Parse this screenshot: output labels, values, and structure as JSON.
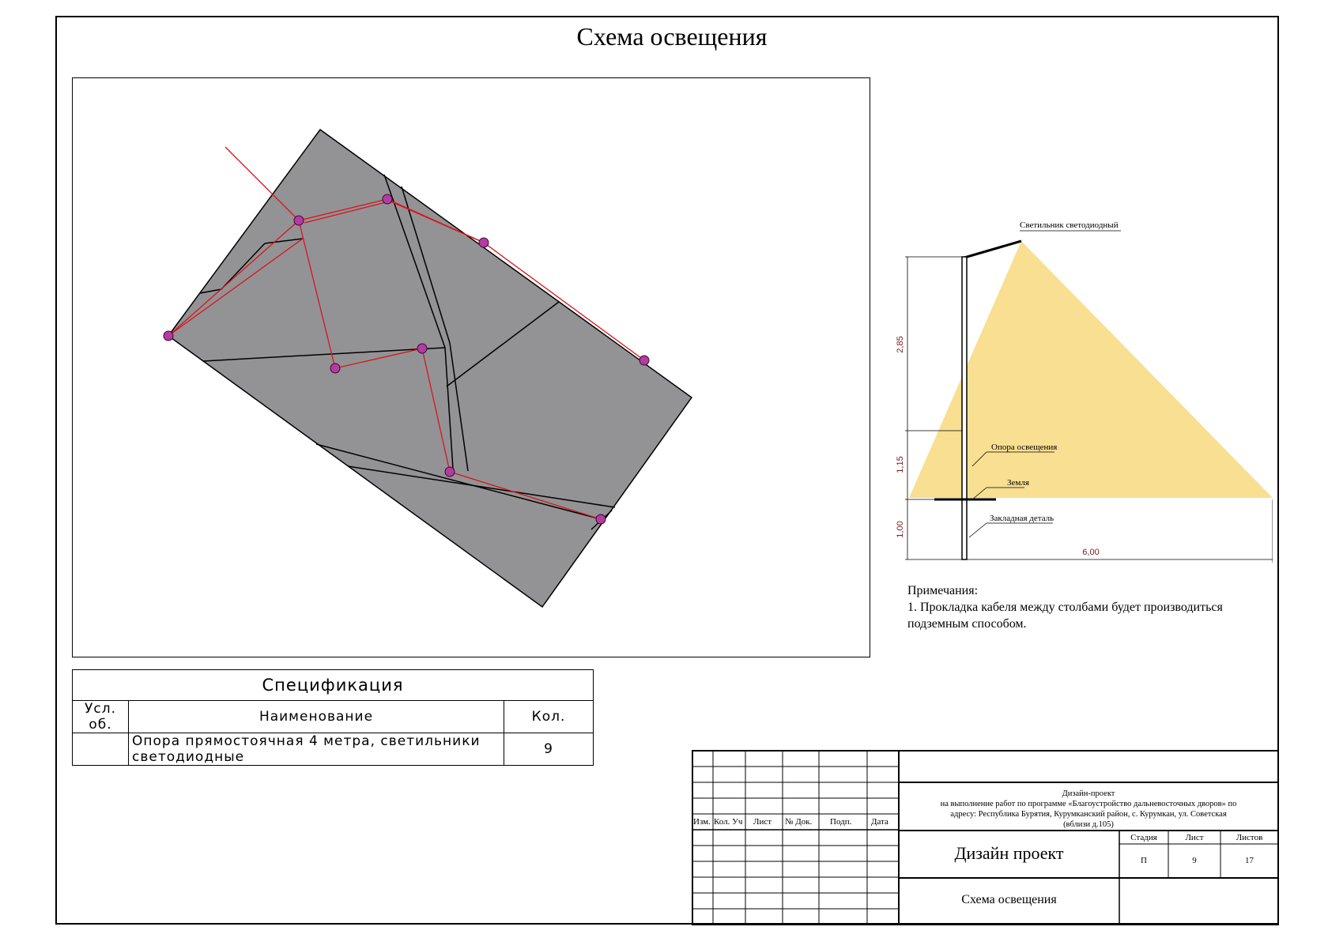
{
  "sheet_title": "Схема освещения",
  "detail": {
    "luminaire_label": "Светильник светодиодный",
    "pole_label": "Опора освещения",
    "ground_label": "Земля",
    "embedded_label": "Закладная деталь",
    "dim_top": "2,85",
    "dim_mid": "1,15",
    "dim_bottom": "1,00",
    "dim_width": "6,00",
    "light_color": "#f7dc86"
  },
  "notes": {
    "heading": "Примечания:",
    "line1": "1. Прокладка кабеля между столбами будет производиться",
    "line2": "подземным способом."
  },
  "spec": {
    "title": "Спецификация",
    "col_symbol": "Усл. об.",
    "col_name": "Наименование",
    "col_qty": "Кол.",
    "rows": [
      {
        "name_line1": "Опора прямостоячная 4 метра, светильники",
        "name_line2": "светодиодные",
        "qty": "9"
      }
    ]
  },
  "title_block": {
    "col_izm": "Изм.",
    "col_kol": "Кол. Уч",
    "col_list": "Лист",
    "col_doc": "№ Док.",
    "col_podp": "Подп.",
    "col_date": "Дата",
    "project_line1": "Дизайн-проект",
    "project_line2": "на выполнение работ по программе «Благоустройство дальневосточных дворов» по",
    "project_line3": "адресу: Республика Бурятия, Курумканский район, с. Курумкан, ул. Советская",
    "project_line4": "(вблизи д.105)",
    "stage_label": "Стадия",
    "sheet_label": "Лист",
    "sheets_label": "Листов",
    "stage_value": "П",
    "sheet_value": "9",
    "sheets_value": "17",
    "doc_title": "Дизайн проект",
    "drawing_title": "Схема освещения"
  },
  "colors": {
    "area_fill": "#939396",
    "cable": "#d9141b",
    "lamp_marker": "#b23ca0"
  }
}
